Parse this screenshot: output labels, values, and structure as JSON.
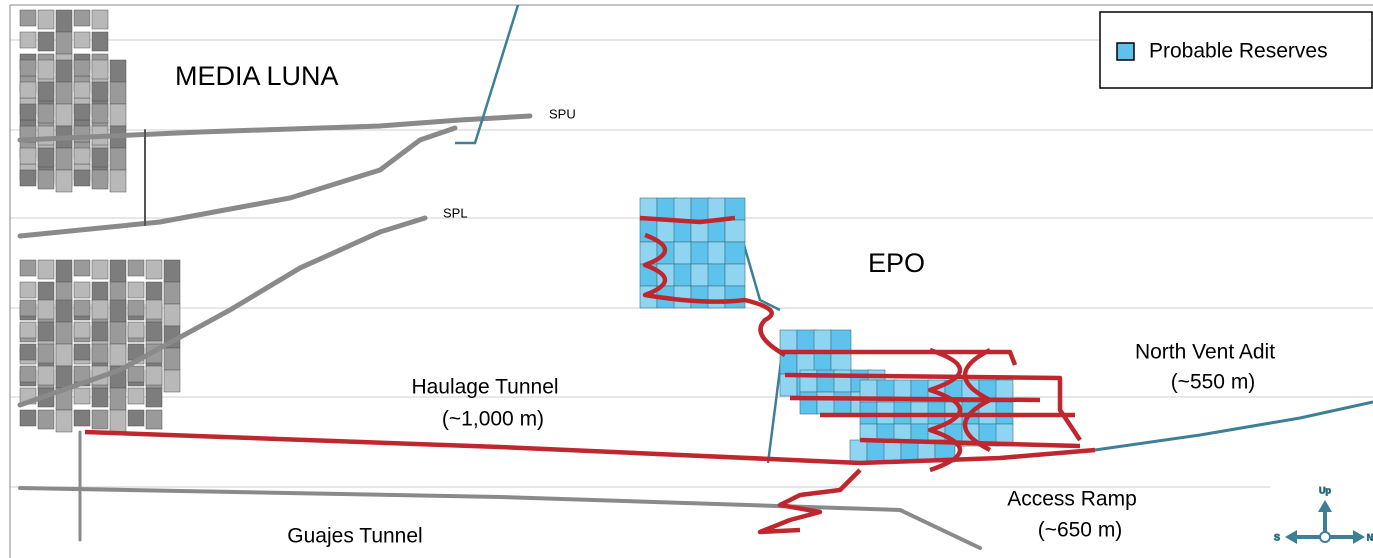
{
  "labels": {
    "media_luna": "MEDIA LUNA",
    "spu": "SPU",
    "spl": "SPL",
    "epo": "EPO",
    "haulage_tunnel": "Haulage Tunnel",
    "haulage_length": "(~1,000 m)",
    "north_vent_adit": "North Vent Adit",
    "north_vent_length": "(~550 m)",
    "access_ramp": "Access Ramp",
    "access_ramp_length": "(~650 m)",
    "guajes_tunnel": "Guajes Tunnel"
  },
  "legend": {
    "items": [
      "Probable Reserves"
    ]
  },
  "compass": {
    "up": "Up",
    "south": "S",
    "north": "N"
  }
}
